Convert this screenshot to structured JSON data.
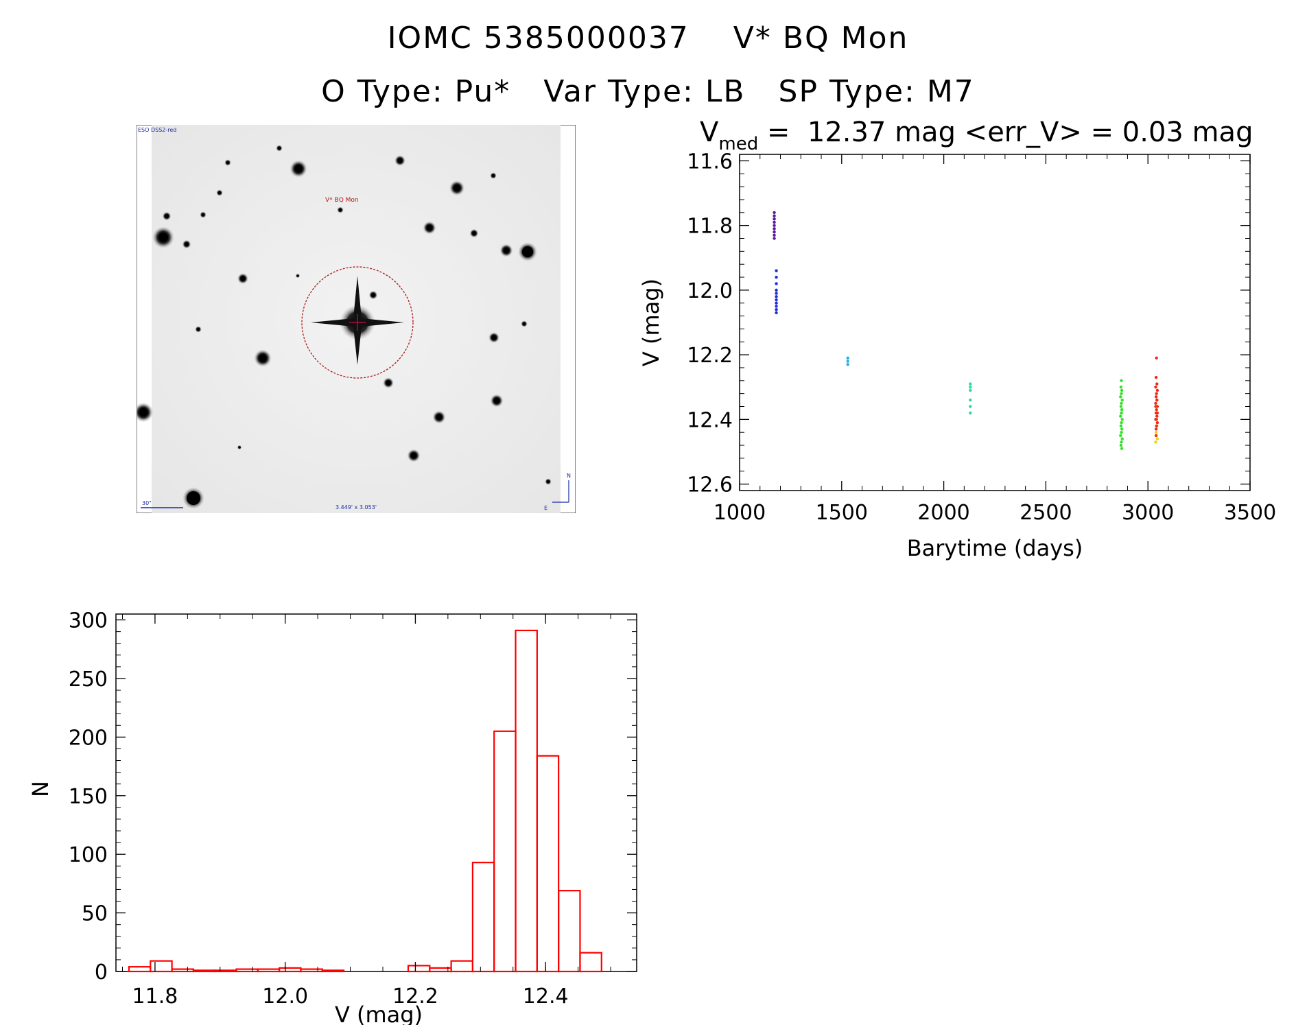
{
  "header": {
    "line1": "IOMC 5385000037    V* BQ Mon",
    "line2": "O Type: Pu*   Var Type: LB   SP Type: M7"
  },
  "finder": {
    "survey_label": "ESO DSS2-red",
    "target_label": "V* BQ Mon",
    "scale_label": "30\"",
    "fov_label": "3.449' x 3.053'",
    "compass_n": "N",
    "compass_e": "E"
  },
  "chart_data": [
    {
      "type": "scatter",
      "title_prefix": "V",
      "title_subscript": "med",
      "title_rest": " =  12.37 mag <err_V> = 0.03 mag",
      "xlabel": "Barytime (days)",
      "ylabel": "V (mag)",
      "xlim": [
        1000,
        3500
      ],
      "ylim": [
        12.62,
        11.58
      ],
      "x_ticks": [
        1000,
        1500,
        2000,
        2500,
        3000,
        3500
      ],
      "x_tick_labels": [
        "1000",
        "1500",
        "2000",
        "2500",
        "3000",
        "3500"
      ],
      "y_ticks": [
        11.6,
        11.8,
        12.0,
        12.2,
        12.4,
        12.6
      ],
      "y_tick_labels": [
        "11.6",
        "11.8",
        "12.0",
        "12.2",
        "12.4",
        "12.6"
      ],
      "series": [
        {
          "name": "epoch1",
          "color": "#5b1a9e",
          "x": [
            1170,
            1170,
            1170,
            1170,
            1170,
            1170,
            1170,
            1170,
            1170
          ],
          "y": [
            11.76,
            11.77,
            11.78,
            11.79,
            11.8,
            11.81,
            11.82,
            11.83,
            11.84
          ]
        },
        {
          "name": "epoch2",
          "color": "#1f2fd6",
          "x": [
            1180,
            1180,
            1180,
            1180,
            1180,
            1180,
            1180,
            1180,
            1180,
            1180,
            1180
          ],
          "y": [
            11.94,
            11.96,
            11.98,
            12.0,
            12.01,
            12.02,
            12.03,
            12.04,
            12.05,
            12.06,
            12.07
          ]
        },
        {
          "name": "epoch3",
          "color": "#1fb4e6",
          "x": [
            1530,
            1530,
            1530
          ],
          "y": [
            12.21,
            12.22,
            12.23
          ]
        },
        {
          "name": "epoch4",
          "color": "#22e0a0",
          "x": [
            2130,
            2130,
            2130,
            2130,
            2130,
            2130
          ],
          "y": [
            12.29,
            12.3,
            12.31,
            12.34,
            12.36,
            12.38
          ]
        },
        {
          "name": "epoch5",
          "color": "#33e02a",
          "x": [
            2870,
            2868,
            2872,
            2870,
            2866,
            2874,
            2870,
            2868,
            2872,
            2870,
            2866,
            2874,
            2870,
            2868,
            2872,
            2870,
            2866,
            2874,
            2870,
            2868,
            2872,
            2870
          ],
          "y": [
            12.28,
            12.3,
            12.31,
            12.32,
            12.33,
            12.34,
            12.35,
            12.36,
            12.37,
            12.38,
            12.39,
            12.4,
            12.41,
            12.42,
            12.43,
            12.44,
            12.45,
            12.46,
            12.47,
            12.48,
            12.49,
            12.38
          ]
        },
        {
          "name": "epoch6",
          "color": "#f0d01a",
          "x": [
            3040,
            3046,
            3038,
            3044
          ],
          "y": [
            12.44,
            12.46,
            12.47,
            12.42
          ]
        },
        {
          "name": "epoch7",
          "color": "#f02a10",
          "x": [
            3042,
            3040,
            3044,
            3038,
            3046,
            3042,
            3040,
            3044,
            3038,
            3046,
            3042,
            3040,
            3044,
            3038,
            3046,
            3042,
            3040,
            3044,
            3038,
            3046,
            3042,
            3040
          ],
          "y": [
            12.21,
            12.27,
            12.29,
            12.3,
            12.31,
            12.32,
            12.33,
            12.34,
            12.35,
            12.36,
            12.37,
            12.38,
            12.39,
            12.4,
            12.41,
            12.42,
            12.43,
            12.34,
            12.36,
            12.38,
            12.4,
            12.45
          ]
        }
      ]
    },
    {
      "type": "bar",
      "xlabel": "V (mag)",
      "ylabel": "N",
      "xlim": [
        11.74,
        12.54
      ],
      "ylim": [
        0,
        305
      ],
      "x_ticks": [
        11.8,
        12.0,
        12.2,
        12.4
      ],
      "x_tick_labels": [
        "11.8",
        "12.0",
        "12.2",
        "12.4"
      ],
      "y_ticks": [
        0,
        50,
        100,
        150,
        200,
        250,
        300
      ],
      "y_tick_labels": [
        "0",
        "50",
        "100",
        "150",
        "200",
        "250",
        "300"
      ],
      "bin_width": 0.033,
      "bin_starts": [
        11.76,
        11.793,
        11.826,
        11.859,
        11.892,
        11.925,
        11.958,
        11.991,
        12.024,
        12.057,
        12.09,
        12.123,
        12.156,
        12.189,
        12.222,
        12.255,
        12.288,
        12.321,
        12.354,
        12.387,
        12.42,
        12.453
      ],
      "values": [
        4,
        9,
        2,
        1,
        1,
        2,
        2,
        3,
        2,
        1,
        0,
        0,
        0,
        5,
        3,
        9,
        93,
        205,
        291,
        184,
        69,
        16
      ],
      "color": "#ff0000"
    }
  ]
}
